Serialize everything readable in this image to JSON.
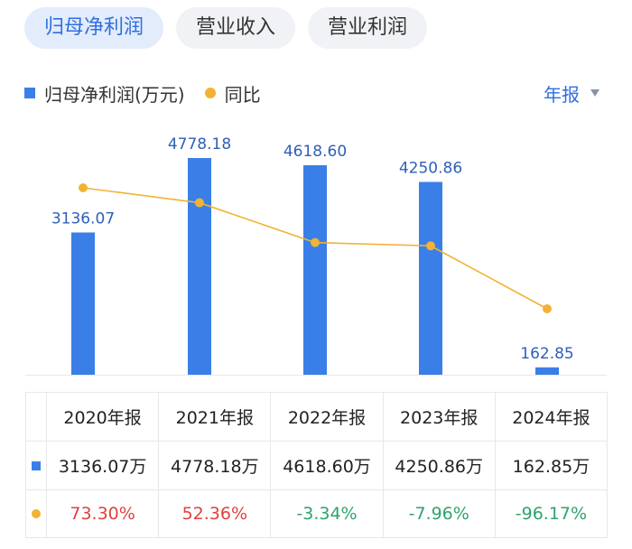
{
  "tabs": [
    {
      "label": "归母净利润",
      "active": true
    },
    {
      "label": "营业收入",
      "active": false
    },
    {
      "label": "营业利润",
      "active": false
    }
  ],
  "legend": {
    "bar": "归母净利润(万元)",
    "line": "同比"
  },
  "period_selector": {
    "label": "年报"
  },
  "colors": {
    "bar": "#3a7fe8",
    "line": "#f2b233",
    "accent": "#2f6fe0",
    "positive": "#e0413d",
    "negative": "#2ea36b"
  },
  "chart_data": {
    "type": "bar",
    "categories": [
      "2020年报",
      "2021年报",
      "2022年报",
      "2023年报",
      "2024年报"
    ],
    "series": [
      {
        "name": "归母净利润(万元)",
        "type": "bar",
        "values": [
          3136.07,
          4778.18,
          4618.6,
          4250.86,
          162.85
        ],
        "labels": [
          "3136.07",
          "4778.18",
          "4618.60",
          "4250.86",
          "162.85"
        ]
      },
      {
        "name": "同比",
        "type": "line",
        "values": [
          73.3,
          52.36,
          -3.34,
          -7.96,
          -96.17
        ]
      }
    ],
    "ylim": [
      0,
      5500
    ],
    "grid": false,
    "legend_position": "top-left"
  },
  "table": {
    "headers": [
      "2020年报",
      "2021年报",
      "2022年报",
      "2023年报",
      "2024年报"
    ],
    "values": [
      "3136.07万",
      "4778.18万",
      "4618.60万",
      "4250.86万",
      "162.85万"
    ],
    "yoy": [
      "73.30%",
      "52.36%",
      "-3.34%",
      "-7.96%",
      "-96.17%"
    ]
  }
}
